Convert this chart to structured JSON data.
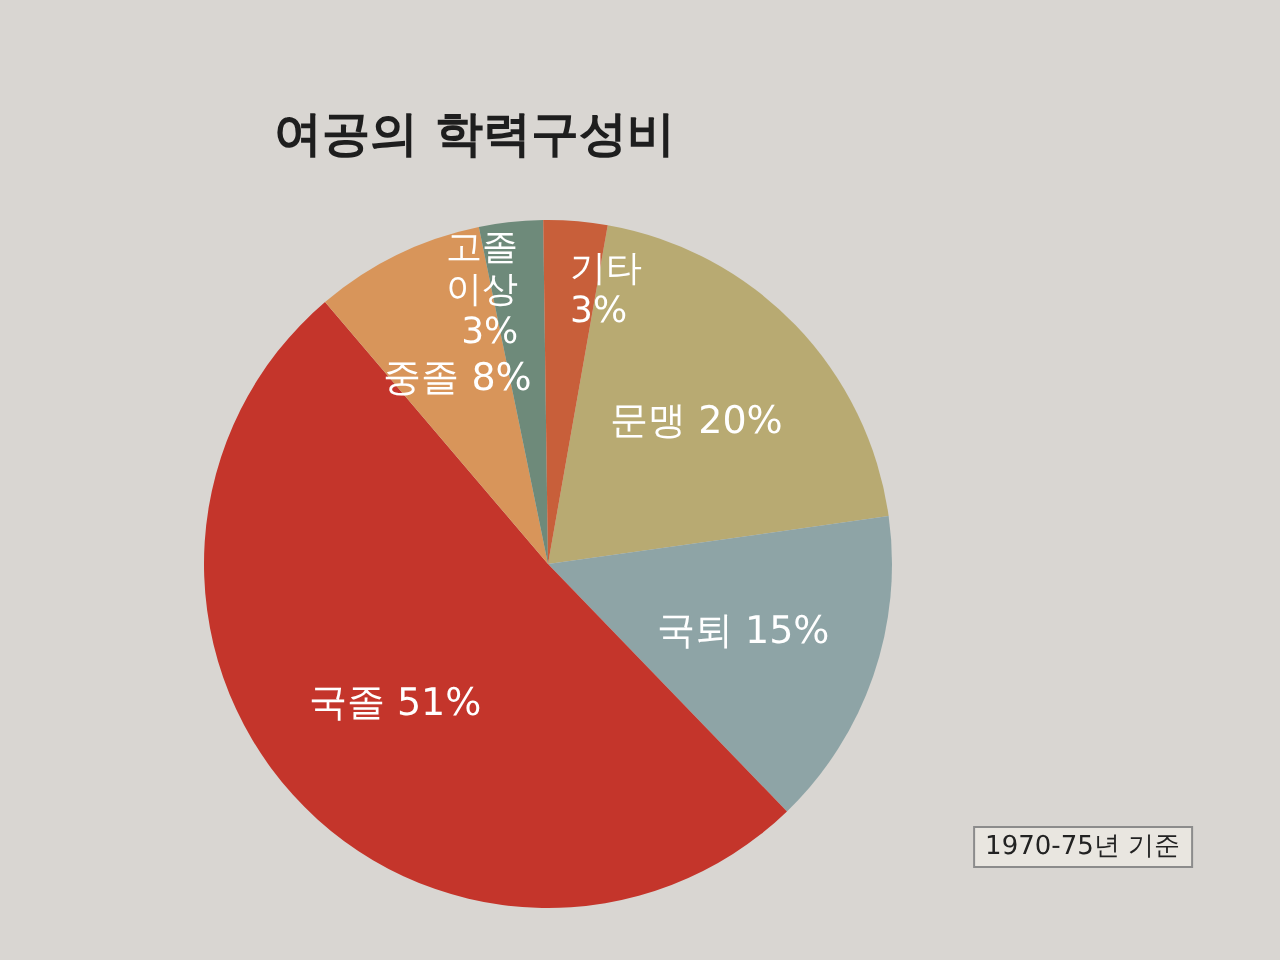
{
  "chart_data": {
    "type": "pie",
    "title": "여공의 학력구성비",
    "categories": [
      "문맹",
      "국퇴",
      "국졸",
      "중졸",
      "고졸 이상",
      "기타"
    ],
    "values": [
      20,
      15,
      51,
      8,
      3,
      3
    ],
    "value_labels": [
      "20%",
      "15%",
      "51%",
      "8%",
      "3%",
      "3%"
    ],
    "colors": [
      "#b8aa72",
      "#8ea4a6",
      "#c4352b",
      "#d8955a",
      "#6e8a7a",
      "#c85f3a"
    ],
    "annotations": [
      "1970-75년 기준"
    ]
  }
}
